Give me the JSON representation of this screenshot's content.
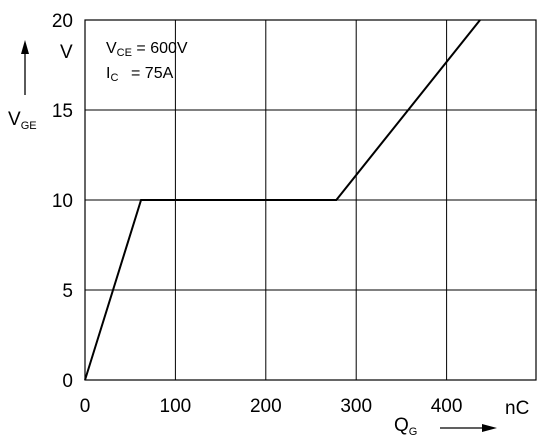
{
  "chart_data": {
    "type": "line",
    "x_ticks": [
      "0",
      "100",
      "200",
      "300",
      "400"
    ],
    "y_ticks": [
      "0",
      "5",
      "10",
      "15",
      "20"
    ],
    "xlim": [
      0,
      500
    ],
    "ylim": [
      0,
      20
    ],
    "x_unit": "nC",
    "y_unit": "V",
    "xlabel": {
      "main": "Q",
      "sub": "G"
    },
    "ylabel": {
      "main": "V",
      "sub": "GE"
    },
    "grid": true,
    "series": [
      {
        "x": [
          0,
          62,
          278,
          437
        ],
        "y": [
          0,
          10,
          10,
          20
        ]
      }
    ],
    "annotations": {
      "vce": {
        "main": "V",
        "sub": "CE",
        "value": " = 600V"
      },
      "ic": {
        "main": "I",
        "sub": "C",
        "value": "=   75A"
      }
    },
    "colors": {
      "line": "#000000",
      "grid": "#000000",
      "background": "#ffffff"
    }
  }
}
